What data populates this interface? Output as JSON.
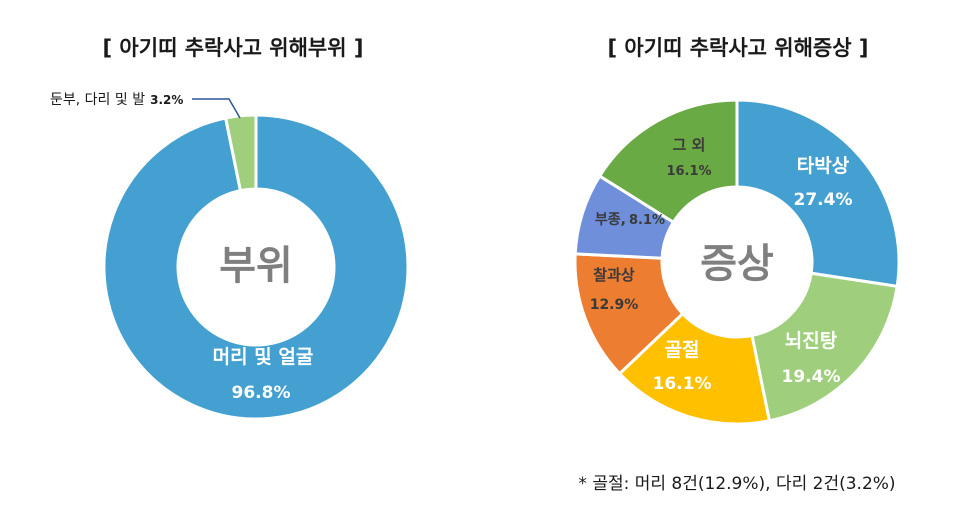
{
  "chart_data": [
    {
      "type": "pie",
      "title": "[ 아기띠 추락사고 위해부위 ]",
      "center_label": "부위",
      "slices": [
        {
          "label": "머리 및 얼굴",
          "value": 96.8,
          "display": "96.8%",
          "color": "#43A0D0"
        },
        {
          "label": "둔부, 다리 및 발",
          "value": 3.2,
          "display": "3.2%",
          "color": "#9FCF7D"
        }
      ]
    },
    {
      "type": "pie",
      "title": "[ 아기띠 추락사고 위해증상 ]",
      "center_label": "증상",
      "slices": [
        {
          "label": "타박상",
          "value": 27.4,
          "display": "27.4%",
          "color": "#43A0D0"
        },
        {
          "label": "뇌진탕",
          "value": 19.4,
          "display": "19.4%",
          "color": "#9FCF7D"
        },
        {
          "label": "골절",
          "value": 16.1,
          "display": "16.1%",
          "color": "#FFC000"
        },
        {
          "label": "찰과상",
          "value": 12.9,
          "display": "12.9%",
          "color": "#ED7D31"
        },
        {
          "label": "부종,",
          "value": 8.1,
          "display": "8.1%",
          "color": "#6F8FDA"
        },
        {
          "label": "그 외",
          "value": 16.1,
          "display": "16.1%",
          "color": "#6AAA45"
        }
      ]
    }
  ],
  "footnote": "* 골절: 머리 8건(12.9%), 다리 2건(3.2%)"
}
